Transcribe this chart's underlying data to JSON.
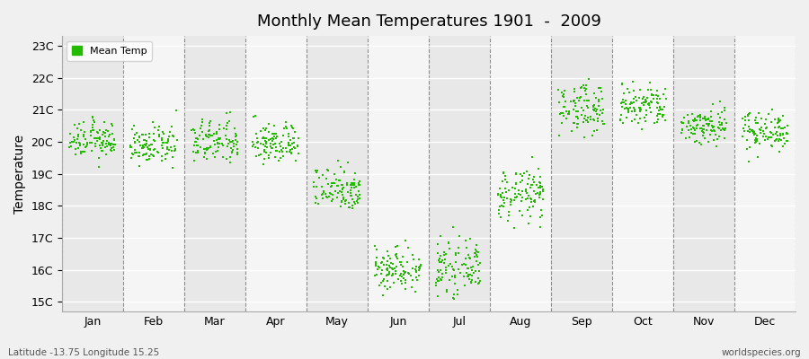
{
  "title": "Monthly Mean Temperatures 1901  -  2009",
  "ylabel": "Temperature",
  "subtitle": "Latitude -13.75 Longitude 15.25",
  "watermark": "worldspecies.org",
  "ytick_labels": [
    "15C",
    "16C",
    "17C",
    "18C",
    "19C",
    "20C",
    "21C",
    "22C",
    "23C"
  ],
  "ytick_values": [
    15,
    16,
    17,
    18,
    19,
    20,
    21,
    22,
    23
  ],
  "ylim": [
    14.7,
    23.3
  ],
  "months": [
    "Jan",
    "Feb",
    "Mar",
    "Apr",
    "May",
    "Jun",
    "Jul",
    "Aug",
    "Sep",
    "Oct",
    "Nov",
    "Dec"
  ],
  "month_means": [
    20.05,
    19.87,
    20.0,
    19.95,
    18.55,
    16.05,
    16.05,
    18.35,
    21.05,
    21.1,
    20.5,
    20.35
  ],
  "month_stds": [
    0.28,
    0.28,
    0.35,
    0.32,
    0.35,
    0.35,
    0.38,
    0.4,
    0.38,
    0.35,
    0.3,
    0.3
  ],
  "n_years": 109,
  "dot_color": "#22bb00",
  "dot_size": 4,
  "bg_color": "#f0f0f0",
  "col_bg_odd": "#e8e8e8",
  "col_bg_even": "#f5f5f5",
  "legend_label": "Mean Temp",
  "dashed_line_color": "#666666"
}
